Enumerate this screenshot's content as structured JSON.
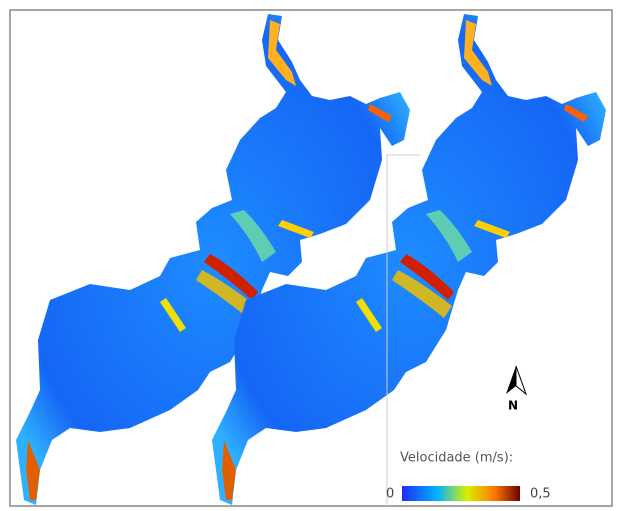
{
  "north_arrow": {
    "label": "N"
  },
  "legend": {
    "title": "Velocidade (m/s):",
    "min_label": "0",
    "max_label": "0,5"
  }
}
